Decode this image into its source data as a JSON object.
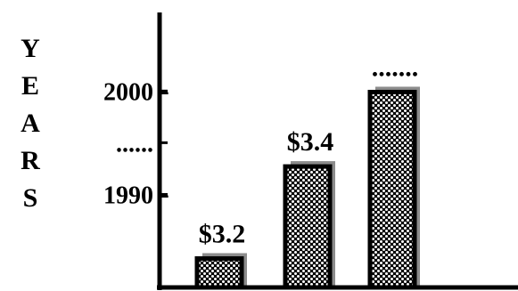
{
  "chart_data": {
    "type": "bar",
    "title": "",
    "xlabel": "",
    "ylabel": "YEARS",
    "ylabel_letters": [
      "Y",
      "E",
      "A",
      "R",
      "S"
    ],
    "y_ticks": [
      {
        "value": 1990,
        "label": "1990"
      },
      {
        "value": 1995,
        "label": "......"
      },
      {
        "value": 2000,
        "label": "2000"
      }
    ],
    "ylim": [
      1981,
      2007.6
    ],
    "categories": [
      "",
      "",
      ""
    ],
    "values": [
      1983.8,
      1992.7,
      1999.9
    ],
    "data_labels": [
      "$3.2",
      "$3.4",
      "......."
    ],
    "grid": false,
    "legend": "none"
  },
  "colors": {
    "axis": "#000000",
    "bar_outline": "#000000",
    "bar_shadow": "#8c8c8c",
    "bar_pattern_bg": "#ffffff",
    "bar_pattern_dot": "#000000"
  }
}
